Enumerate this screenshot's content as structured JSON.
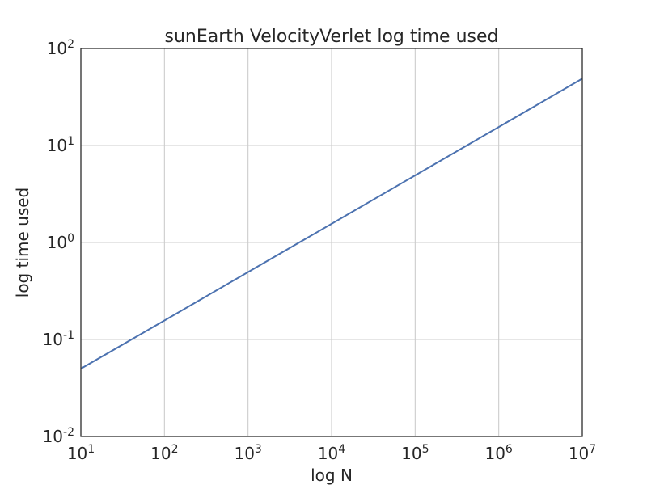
{
  "chart_data": {
    "type": "line",
    "title": "sunEarth VelocityVerlet log time used",
    "xlabel": "log N",
    "ylabel": "log time used",
    "xscale": "log",
    "yscale": "log",
    "xlim": [
      10,
      10000000
    ],
    "ylim": [
      0.01,
      100
    ],
    "grid": true,
    "x_ticks": [
      {
        "base": "10",
        "exp": "1",
        "value": 10
      },
      {
        "base": "10",
        "exp": "2",
        "value": 100
      },
      {
        "base": "10",
        "exp": "3",
        "value": 1000
      },
      {
        "base": "10",
        "exp": "4",
        "value": 10000
      },
      {
        "base": "10",
        "exp": "5",
        "value": 100000
      },
      {
        "base": "10",
        "exp": "6",
        "value": 1000000
      },
      {
        "base": "10",
        "exp": "7",
        "value": 10000000
      }
    ],
    "y_ticks": [
      {
        "base": "10",
        "exp": "-2",
        "value": 0.01
      },
      {
        "base": "10",
        "exp": "-1",
        "value": 0.1
      },
      {
        "base": "10",
        "exp": "0",
        "value": 1
      },
      {
        "base": "10",
        "exp": "1",
        "value": 10
      },
      {
        "base": "10",
        "exp": "2",
        "value": 100
      }
    ],
    "series": [
      {
        "color": "#4c72b0",
        "x": [
          10,
          100,
          1000,
          10000,
          100000,
          1000000,
          10000000
        ],
        "y": [
          0.05,
          0.157,
          0.495,
          1.56,
          4.92,
          15.5,
          48.9
        ]
      }
    ]
  },
  "style": {
    "grid_color": "#cccccc",
    "axes_color": "#262626",
    "text_color": "#262626"
  }
}
